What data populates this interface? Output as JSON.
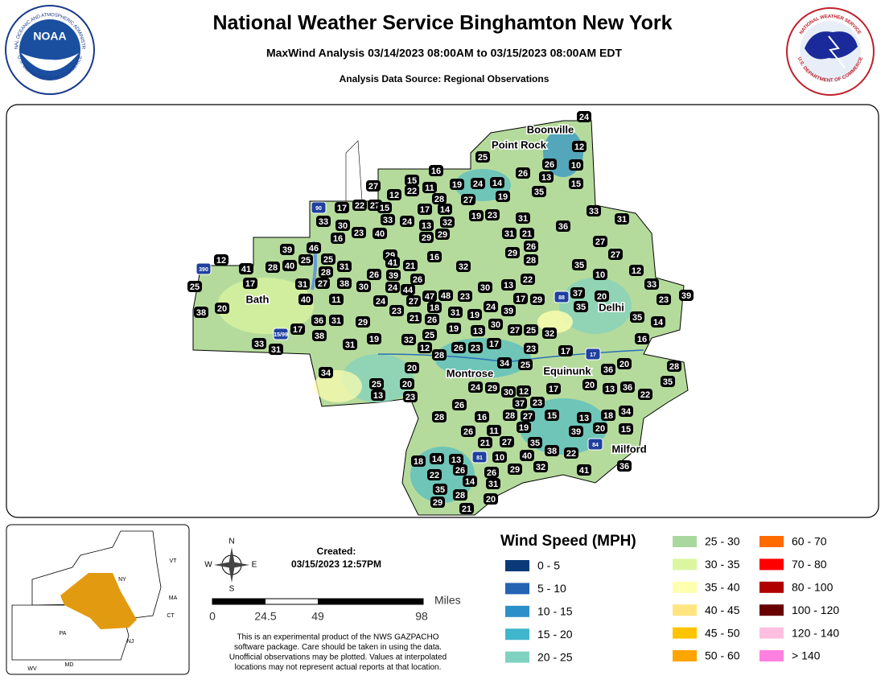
{
  "header": {
    "title": "National Weather Service Binghamton New York",
    "subtitle": "MaxWind Analysis 03/14/2023 08:00AM to 03/15/2023 08:00AM EDT",
    "source": "Analysis Data Source: Regional Observations",
    "noaa_logo": {
      "name": "NOAA",
      "ring_top": "NATIONAL OCEANIC AND ATMOSPHERIC ADMINISTRATION",
      "ring_bottom": "U.S. DEPARTMENT OF COMMERCE"
    },
    "nws_logo": {
      "ring_top": "NATIONAL WEATHER SERVICE",
      "ring_bottom": "U.S. DEPARTMENT OF COMMERCE"
    }
  },
  "map": {
    "places": [
      "Boonville",
      "Point Rock",
      "Bath",
      "Delhi",
      "Montrose",
      "Equinunk",
      "Milford"
    ],
    "highways": [
      "90",
      "390",
      "15/99",
      "88",
      "17",
      "81",
      "84"
    ],
    "stations": [
      24,
      25,
      12,
      10,
      26,
      13,
      15,
      26,
      16,
      27,
      15,
      19,
      24,
      14,
      12,
      22,
      11,
      28,
      19,
      35,
      27,
      17,
      22,
      27,
      15,
      17,
      14,
      33,
      31,
      33,
      30,
      33,
      24,
      13,
      32,
      19,
      23,
      31,
      36,
      16,
      23,
      40,
      29,
      29,
      31,
      21,
      26,
      27,
      39,
      46,
      25,
      29,
      16,
      29,
      28,
      27,
      12,
      41,
      28,
      40,
      25,
      31,
      41,
      21,
      32,
      35,
      12,
      28,
      26,
      39,
      10,
      17,
      31,
      27,
      38,
      30,
      24,
      26,
      44,
      30,
      13,
      22,
      33,
      25,
      40,
      11,
      24,
      27,
      47,
      48,
      23,
      17,
      29,
      37,
      20,
      23,
      39,
      38,
      20,
      23,
      18,
      31,
      19,
      24,
      39,
      35,
      21,
      26,
      36,
      31,
      29,
      35,
      14,
      17,
      38,
      19,
      32,
      25,
      19,
      13,
      30,
      27,
      25,
      32,
      16,
      33,
      31,
      31,
      12,
      28,
      26,
      23,
      17,
      23,
      17,
      20,
      34,
      25,
      28,
      34,
      25,
      20,
      36,
      20,
      35,
      13,
      23,
      24,
      29,
      30,
      12,
      17,
      20,
      13,
      36,
      22,
      26,
      37,
      23,
      28,
      16,
      28,
      27,
      15,
      13,
      18,
      34,
      26,
      11,
      19,
      39,
      20,
      15,
      21,
      27,
      35,
      38,
      22,
      18,
      14,
      13,
      10,
      40,
      22,
      26,
      26,
      29,
      32,
      41,
      36,
      14,
      31,
      35,
      28,
      29,
      20,
      21
    ]
  },
  "inset": {
    "states": [
      "NY",
      "VT",
      "MA",
      "CT",
      "PA",
      "NJ",
      "MD",
      "WV"
    ]
  },
  "compass": [
    "N",
    "E",
    "S",
    "W"
  ],
  "scale_bar": {
    "ticks": [
      "0",
      "24.5",
      "49",
      "98"
    ],
    "unit": "Miles"
  },
  "created": {
    "label": "Created:",
    "date": "03/15/2023 12:57PM"
  },
  "disclaimer": [
    "This is an experimental product of the NWS GAZPACHO",
    "software package. Care should be taken in using the data.",
    "Unofficial observations may be plotted. Values at interpolated",
    "locations may not represent actual reports at that location."
  ],
  "legend": {
    "title": "Wind Speed (MPH)",
    "items": [
      {
        "label": "0 - 5",
        "color": "#0a3a78"
      },
      {
        "label": "5 - 10",
        "color": "#2563b3"
      },
      {
        "label": "10 - 15",
        "color": "#2b90c8"
      },
      {
        "label": "15 - 20",
        "color": "#40b6cc"
      },
      {
        "label": "20 - 25",
        "color": "#80d2c0"
      },
      {
        "label": "25 - 30",
        "color": "#a9d89e"
      },
      {
        "label": "30 - 35",
        "color": "#dcf6a0"
      },
      {
        "label": "35 - 40",
        "color": "#ffffb0"
      },
      {
        "label": "40 - 45",
        "color": "#ffe580"
      },
      {
        "label": "45 - 50",
        "color": "#ffc400"
      },
      {
        "label": "50 - 60",
        "color": "#ffa500"
      },
      {
        "label": "60 - 70",
        "color": "#ff6a00"
      },
      {
        "label": "70 - 80",
        "color": "#ff0000"
      },
      {
        "label": "80 - 100",
        "color": "#b00000"
      },
      {
        "label": "100 - 120",
        "color": "#680000"
      },
      {
        "label": "120 - 140",
        "color": "#ffc0e0"
      },
      {
        "label": "> 140",
        "color": "#ff80e0"
      }
    ]
  }
}
